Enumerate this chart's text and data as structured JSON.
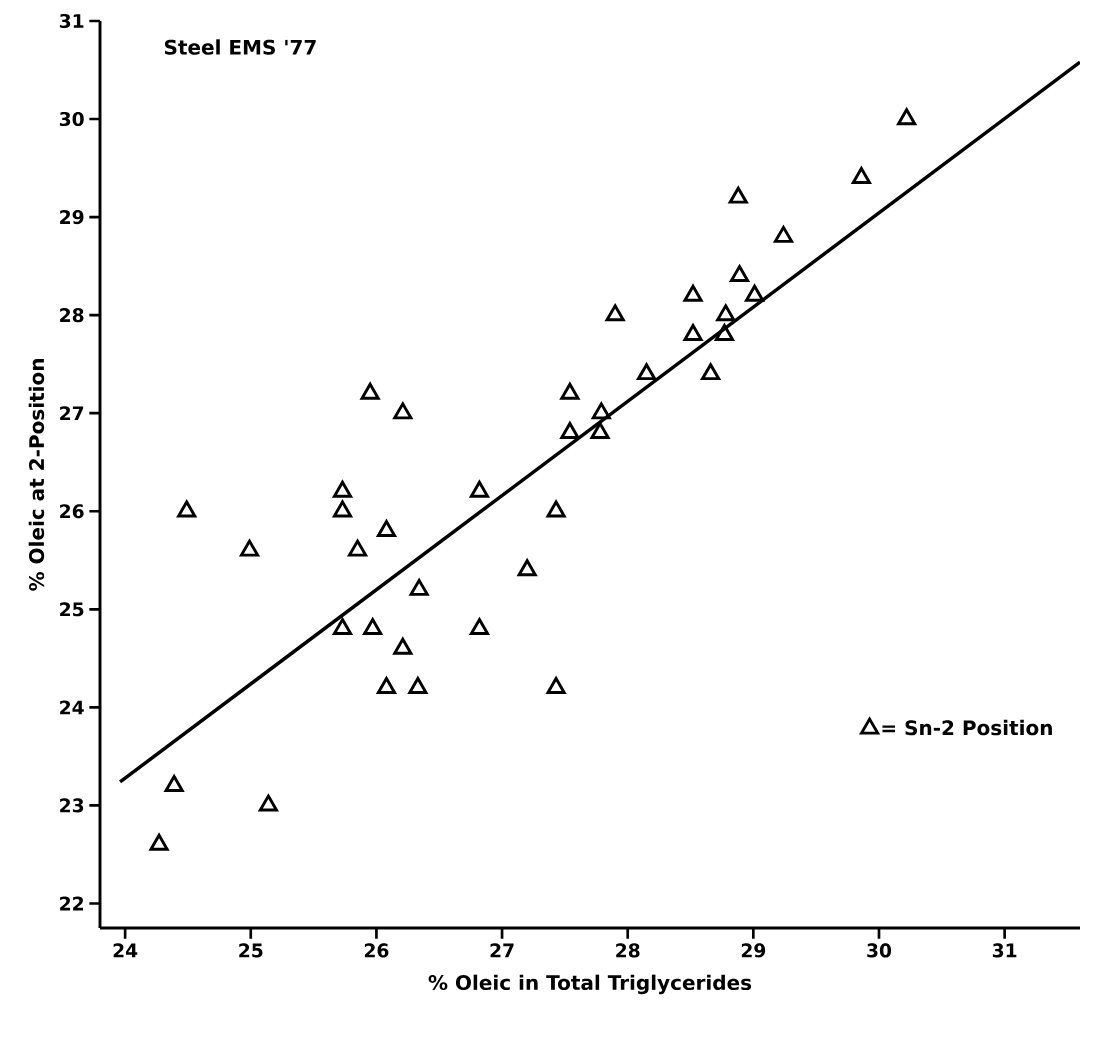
{
  "chart_data": {
    "type": "scatter",
    "xlabel": "% Oleic in Total Triglycerides",
    "ylabel": "% Oleic at 2-Position",
    "annotations": [
      "Steel EMS '77"
    ],
    "xlim": [
      23.8,
      31.6
    ],
    "ylim": [
      21.75,
      31
    ],
    "xticks": [
      24,
      25,
      26,
      27,
      28,
      29,
      30,
      31
    ],
    "yticks": [
      22,
      23,
      24,
      25,
      26,
      27,
      28,
      29,
      30,
      31
    ],
    "grid": false,
    "legend": "bottom right",
    "series": [
      {
        "name": "= Sn-2 Position",
        "color": "#000000",
        "marker": "triangle",
        "x": [
          24.27,
          24.39,
          24.49,
          24.99,
          25.14,
          25.73,
          25.73,
          25.85,
          26.08,
          25.73,
          25.97,
          25.95,
          26.21,
          26.21,
          26.08,
          26.34,
          26.33,
          26.82,
          26.82,
          27.2,
          27.43,
          27.43,
          27.54,
          27.54,
          27.78,
          27.79,
          27.9,
          28.15,
          28.52,
          28.52,
          28.66,
          28.77,
          28.78,
          28.88,
          28.89,
          29.01,
          29.24,
          29.86,
          30.22
        ],
        "values": [
          22.6,
          23.2,
          26.0,
          25.6,
          23.0,
          26.2,
          26.0,
          25.6,
          25.8,
          24.8,
          24.8,
          27.2,
          27.0,
          24.6,
          24.2,
          25.2,
          24.2,
          26.2,
          24.8,
          25.4,
          26.0,
          24.2,
          27.2,
          26.8,
          26.8,
          27.0,
          28.0,
          27.4,
          28.2,
          27.8,
          27.4,
          27.8,
          28.0,
          29.2,
          28.4,
          28.2,
          28.8,
          29.4,
          30.0
        ]
      },
      {
        "type": "line",
        "color": "#000000",
        "marker": "none",
        "x": [
          23.96,
          31.6
        ],
        "values": [
          23.24,
          30.58
        ]
      }
    ]
  }
}
